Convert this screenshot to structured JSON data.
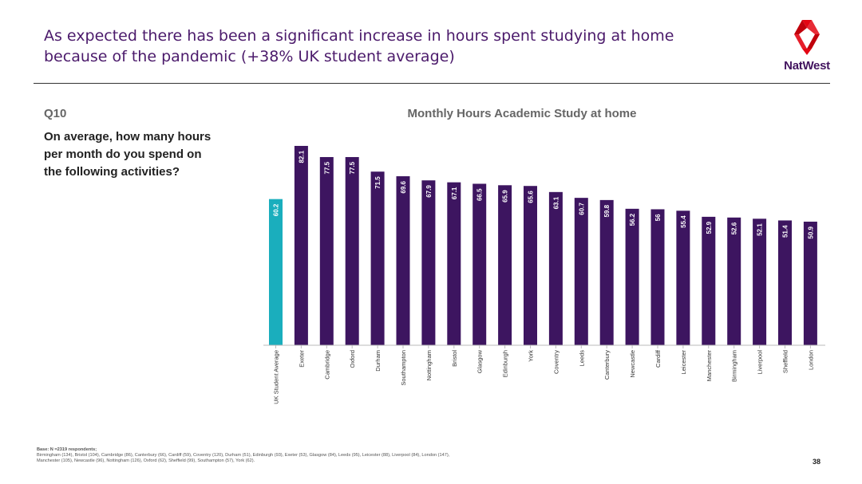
{
  "slide": {
    "title_line1": "As expected there has been a significant increase in hours spent studying at home",
    "title_line2": "because of the pandemic (+38% UK student average)",
    "brand_name": "NatWest",
    "question_number": "Q10",
    "question_text": "On average, how many hours per month do you spend on the following activities?",
    "footnote_base": "Base: N =2319 respondents;",
    "footnote_line1": "Birmingham (134), Bristol (104), Cambridge (86), Canterbury (66), Cardiff (59), Coventry (120), Durham (51), Edinburgh (93), Exeter (53), Glasgow (84), Leeds (95), Leicester (88), Liverpool (84), London (147),",
    "footnote_line2": "Manchester (105), Newcastle (96), Nottingham (126), Oxford (62), Sheffield (99), Southampton (57), York (62).",
    "page_number": "38"
  },
  "colors": {
    "title": "#4b1a6b",
    "bar_average": "#1aaebd",
    "bar_city": "#3d1560",
    "logo_red": "#e30613"
  },
  "chart_data": {
    "type": "bar",
    "title": "Monthly Hours Academic Study at home",
    "xlabel": "",
    "ylabel": "",
    "ylim": [
      0,
      88
    ],
    "grid": false,
    "data_labels": true,
    "categories": [
      "UK Student Average",
      "Exeter",
      "Cambridge",
      "Oxford",
      "Durham",
      "Southampton",
      "Nottingham",
      "Bristol",
      "Glasgow",
      "Edinburgh",
      "York",
      "Coventry",
      "Leeds",
      "Canterbury",
      "Newcastle",
      "Cardiff",
      "Leicester",
      "Manchester",
      "Birmingham",
      "Liverpool",
      "Sheffield",
      "London"
    ],
    "values": [
      60.2,
      82.1,
      77.5,
      77.5,
      71.5,
      69.6,
      67.9,
      67.1,
      66.5,
      65.9,
      65.6,
      63.1,
      60.7,
      59.8,
      56.2,
      56,
      55.4,
      52.9,
      52.6,
      52.1,
      51.4,
      50.9
    ],
    "labels": [
      "60.2",
      "82.1",
      "77.5",
      "77.5",
      "71.5",
      "69.6",
      "67.9",
      "67.1",
      "66.5",
      "65.9",
      "65.6",
      "63.1",
      "60.7",
      "59.8",
      "56.2",
      "56",
      "55.4",
      "52.9",
      "52.6",
      "52.1",
      "51.4",
      "50.9"
    ],
    "highlight_index": 0
  }
}
